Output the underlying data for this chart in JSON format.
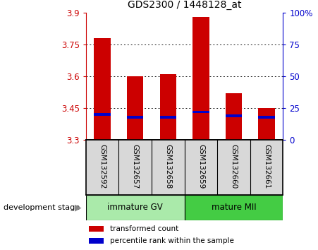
{
  "title": "GDS2300 / 1448128_at",
  "samples": [
    "GSM132592",
    "GSM132657",
    "GSM132658",
    "GSM132659",
    "GSM132660",
    "GSM132661"
  ],
  "transformed_counts": [
    3.78,
    3.6,
    3.61,
    3.88,
    3.52,
    3.45
  ],
  "percentile_ranks": [
    20,
    18,
    18,
    22,
    19,
    18
  ],
  "ymin": 3.3,
  "ymax": 3.9,
  "yticks": [
    3.3,
    3.45,
    3.6,
    3.75,
    3.9
  ],
  "right_yticks": [
    0,
    25,
    50,
    75,
    100
  ],
  "bar_color": "#cc0000",
  "percentile_color": "#0000cc",
  "bar_width": 0.5,
  "group_immature_label": "immature GV",
  "group_immature_color": "#aaeaaa",
  "group_mature_label": "mature MII",
  "group_mature_color": "#44cc44",
  "group_label_text": "development stage",
  "legend_bar": "transformed count",
  "legend_pct": "percentile rank within the sample",
  "tick_area_bg": "#d8d8d8",
  "left_tick_color": "#cc0000",
  "right_tick_color": "#0000cc",
  "grid_yticks": [
    3.75,
    3.6,
    3.45
  ]
}
